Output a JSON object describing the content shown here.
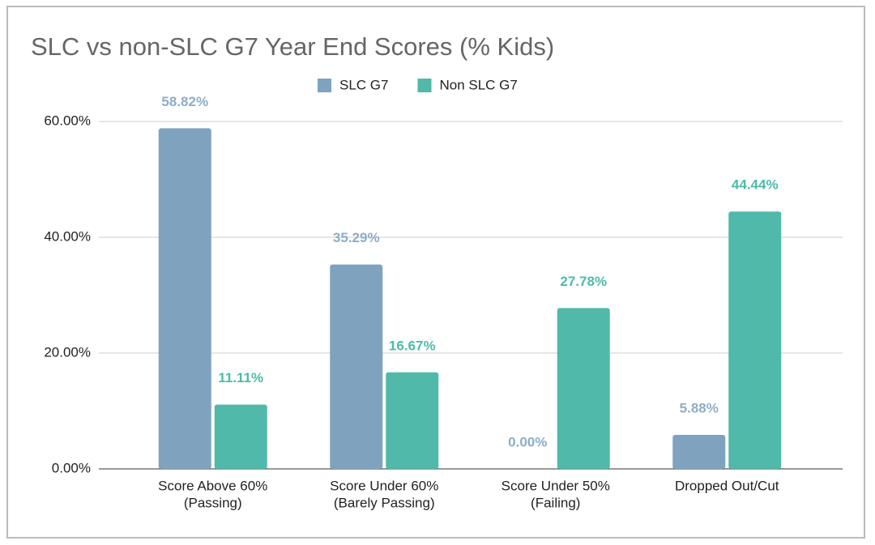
{
  "chart_data": {
    "type": "bar",
    "title": "SLC vs non-SLC G7 Year End Scores (% Kids)",
    "categories": [
      [
        "Score Above 60%",
        "(Passing)"
      ],
      [
        "Score Under 60%",
        "(Barely Passing)"
      ],
      [
        "Score Under 50%",
        "(Failing)"
      ],
      [
        "Dropped Out/Cut"
      ]
    ],
    "series": [
      {
        "name": "SLC G7",
        "color": "#7fa3bf",
        "label_color": "#8dadc8",
        "values": [
          58.82,
          35.29,
          0,
          5.88
        ],
        "value_labels": [
          "58.82%",
          "35.29%",
          "0.00%",
          "5.88%"
        ]
      },
      {
        "name": "Non SLC G7",
        "color": "#50b9a9",
        "label_color": "#4cbcaa",
        "values": [
          11.11,
          16.67,
          27.78,
          44.44
        ],
        "value_labels": [
          "11.11%",
          "16.67%",
          "27.78%",
          "44.44%"
        ]
      }
    ],
    "ylim": [
      0,
      60
    ],
    "yticks": [
      {
        "value": 0,
        "label": "0.00%"
      },
      {
        "value": 20,
        "label": "20.00%"
      },
      {
        "value": 40,
        "label": "40.00%"
      },
      {
        "value": 60,
        "label": "60.00%"
      }
    ],
    "grid": true,
    "legend": "top"
  }
}
